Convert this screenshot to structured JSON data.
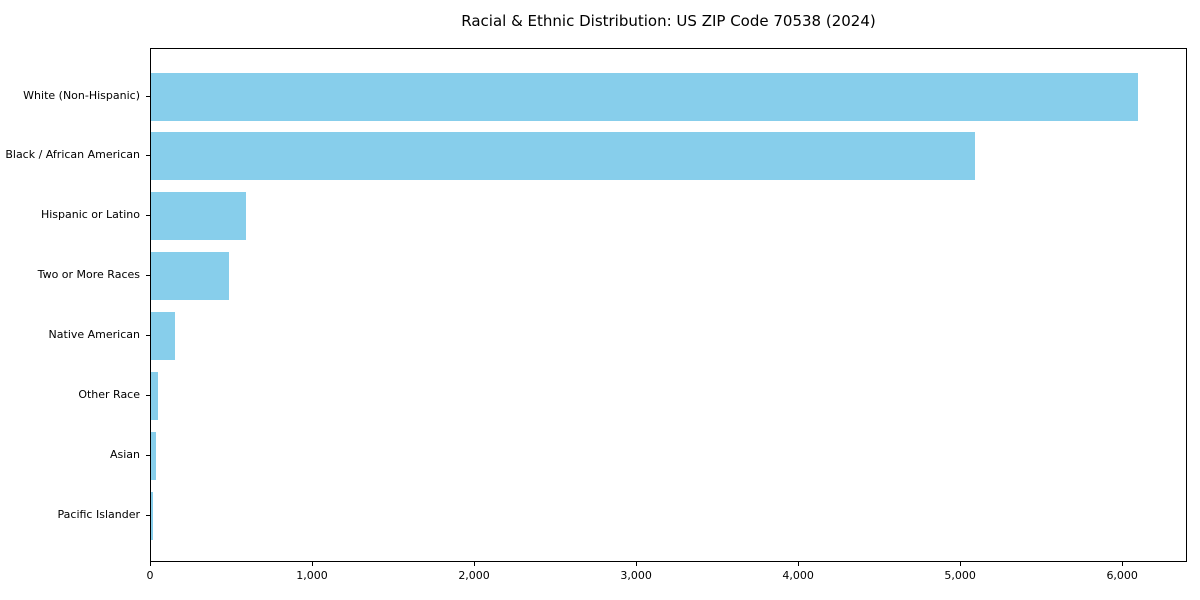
{
  "chart_data": {
    "type": "bar",
    "orientation": "horizontal",
    "title": "Racial & Ethnic Distribution: US ZIP Code 70538 (2024)",
    "categories": [
      "White (Non-Hispanic)",
      "Black / African American",
      "Hispanic or Latino",
      "Two or More Races",
      "Native American",
      "Other Race",
      "Asian",
      "Pacific Islander"
    ],
    "values": [
      6090,
      5085,
      585,
      480,
      150,
      45,
      30,
      10
    ],
    "xlabel": "",
    "ylabel": "",
    "xlim": [
      0,
      6400
    ],
    "x_ticks": [
      0,
      1000,
      2000,
      3000,
      4000,
      5000,
      6000
    ],
    "x_tick_labels": [
      "0",
      "1,000",
      "2,000",
      "3,000",
      "4,000",
      "5,000",
      "6,000"
    ],
    "bar_color": "#87CEEB",
    "axis_color": "#000000",
    "background_color": "#ffffff",
    "grid": false,
    "legend": null
  }
}
